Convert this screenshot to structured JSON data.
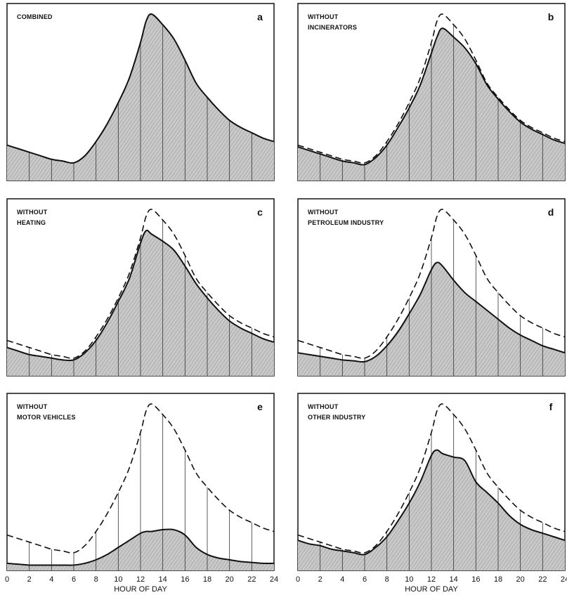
{
  "chart_data": {
    "type": "area",
    "xlabel": "HOUR OF DAY",
    "x_ticks": [
      "0",
      "2",
      "4",
      "6",
      "8",
      "10",
      "12",
      "14",
      "16",
      "18",
      "20",
      "22",
      "24"
    ],
    "xlim": [
      0,
      24
    ],
    "x": [
      0,
      1,
      2,
      3,
      4,
      5,
      6,
      7,
      8,
      9,
      10,
      11,
      12,
      12.5,
      13,
      14,
      15,
      16,
      17,
      18,
      19,
      20,
      21,
      22,
      23,
      24
    ],
    "combined": [
      0.2,
      0.18,
      0.16,
      0.14,
      0.12,
      0.11,
      0.1,
      0.14,
      0.22,
      0.32,
      0.44,
      0.58,
      0.78,
      0.9,
      0.94,
      0.88,
      0.8,
      0.68,
      0.55,
      0.47,
      0.4,
      0.34,
      0.3,
      0.27,
      0.24,
      0.22
    ],
    "panels": [
      {
        "id": "a",
        "label_line1": "COMBINED",
        "label_line2": "",
        "letter": "a",
        "show_dashed": false,
        "values": [
          0.2,
          0.18,
          0.16,
          0.14,
          0.12,
          0.11,
          0.1,
          0.14,
          0.22,
          0.32,
          0.44,
          0.58,
          0.78,
          0.9,
          0.94,
          0.88,
          0.8,
          0.68,
          0.55,
          0.47,
          0.4,
          0.34,
          0.3,
          0.27,
          0.24,
          0.22
        ]
      },
      {
        "id": "b",
        "label_line1": "WITHOUT",
        "label_line2": "INCINERATORS",
        "letter": "b",
        "show_dashed": true,
        "values": [
          0.19,
          0.17,
          0.15,
          0.13,
          0.11,
          0.1,
          0.09,
          0.13,
          0.2,
          0.3,
          0.41,
          0.54,
          0.72,
          0.81,
          0.86,
          0.81,
          0.75,
          0.66,
          0.54,
          0.46,
          0.39,
          0.33,
          0.29,
          0.26,
          0.23,
          0.21
        ]
      },
      {
        "id": "c",
        "label_line1": "WITHOUT",
        "label_line2": "HEATING",
        "letter": "c",
        "show_dashed": true,
        "values": [
          0.16,
          0.14,
          0.12,
          0.11,
          0.1,
          0.09,
          0.09,
          0.13,
          0.2,
          0.3,
          0.42,
          0.55,
          0.75,
          0.82,
          0.8,
          0.76,
          0.71,
          0.62,
          0.52,
          0.44,
          0.37,
          0.31,
          0.27,
          0.24,
          0.21,
          0.19
        ]
      },
      {
        "id": "d",
        "label_line1": "WITHOUT",
        "label_line2": "PETROLEUM INDUSTRY",
        "letter": "d",
        "show_dashed": true,
        "values": [
          0.13,
          0.12,
          0.11,
          0.1,
          0.09,
          0.085,
          0.08,
          0.11,
          0.17,
          0.25,
          0.35,
          0.46,
          0.6,
          0.64,
          0.62,
          0.54,
          0.47,
          0.42,
          0.37,
          0.32,
          0.27,
          0.23,
          0.2,
          0.17,
          0.15,
          0.13
        ]
      },
      {
        "id": "e",
        "label_line1": "WITHOUT",
        "label_line2": "MOTOR VEHICLES",
        "letter": "e",
        "show_dashed": true,
        "values": [
          0.04,
          0.035,
          0.03,
          0.03,
          0.03,
          0.03,
          0.03,
          0.04,
          0.06,
          0.09,
          0.13,
          0.17,
          0.21,
          0.22,
          0.22,
          0.23,
          0.23,
          0.2,
          0.13,
          0.09,
          0.07,
          0.06,
          0.05,
          0.045,
          0.04,
          0.04
        ]
      },
      {
        "id": "f",
        "label_line1": "WITHOUT",
        "label_line2": "OTHER INDUSTRY",
        "letter": "f",
        "show_dashed": true,
        "values": [
          0.17,
          0.15,
          0.14,
          0.12,
          0.11,
          0.1,
          0.09,
          0.13,
          0.19,
          0.28,
          0.38,
          0.5,
          0.65,
          0.68,
          0.66,
          0.64,
          0.62,
          0.5,
          0.44,
          0.38,
          0.31,
          0.26,
          0.23,
          0.21,
          0.19,
          0.17
        ]
      }
    ]
  }
}
